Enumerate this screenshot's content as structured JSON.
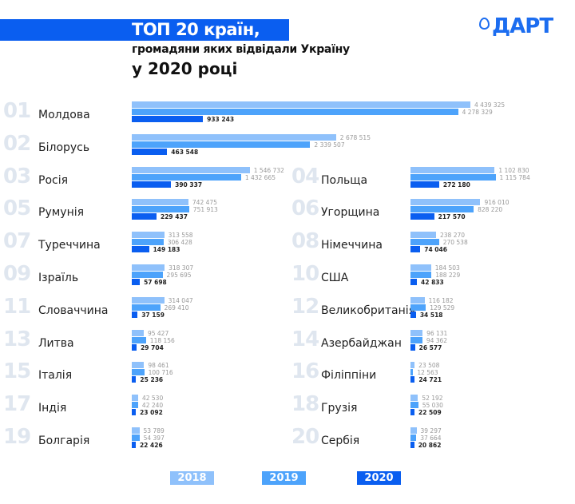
{
  "header": {
    "title_line1": "ТОП 20 країн,",
    "title_line2": "громадяни яких відвідали Україну",
    "title_line3": "у 2020 році"
  },
  "logo": {
    "text": "ДАРТ",
    "icon": "map-pin-icon"
  },
  "colors": {
    "2018": "#8fc1fb",
    "2019": "#4da3fb",
    "2020": "#0a5ef0",
    "rank": "#dfe6ef"
  },
  "chart_data": {
    "type": "bar",
    "orientation": "horizontal",
    "title": "ТОП 20 країн, громадяни яких відвідали Україну у 2020 році",
    "series_names": [
      "2018",
      "2019",
      "2020"
    ],
    "legend_placement": "bottom",
    "grid": false,
    "countries": [
      {
        "rank": "01",
        "name": "Молдова",
        "values": [
          4439325,
          4278329,
          933243
        ],
        "labels": [
          "4 439 325",
          "4 278 329",
          "933 243"
        ]
      },
      {
        "rank": "02",
        "name": "Білорусь",
        "values": [
          2678515,
          2339507,
          463548
        ],
        "labels": [
          "2 678 515",
          "2 339 507",
          "463 548"
        ]
      },
      {
        "rank": "03",
        "name": "Росія",
        "values": [
          1546732,
          1432665,
          390337
        ],
        "labels": [
          "1 546 732",
          "1 432 665",
          "390 337"
        ]
      },
      {
        "rank": "04",
        "name": "Польща",
        "values": [
          1102830,
          1115784,
          272180
        ],
        "labels": [
          "1 102 830",
          "1 115 784",
          "272 180"
        ]
      },
      {
        "rank": "05",
        "name": "Румунія",
        "values": [
          742475,
          751913,
          229437
        ],
        "labels": [
          "742 475",
          "751 913",
          "229 437"
        ]
      },
      {
        "rank": "06",
        "name": "Угорщина",
        "values": [
          916010,
          828220,
          217570
        ],
        "labels": [
          "916 010",
          "828 220",
          "217 570"
        ]
      },
      {
        "rank": "07",
        "name": "Туреччина",
        "values": [
          313558,
          306428,
          149183
        ],
        "labels": [
          "313 558",
          "306 428",
          "149 183"
        ]
      },
      {
        "rank": "08",
        "name": "Німеччина",
        "values": [
          238270,
          270538,
          74046
        ],
        "labels": [
          "238 270",
          "270 538",
          "74 046"
        ]
      },
      {
        "rank": "09",
        "name": "Ізраїль",
        "values": [
          318307,
          295695,
          57698
        ],
        "labels": [
          "318 307",
          "295 695",
          "57 698"
        ]
      },
      {
        "rank": "10",
        "name": "США",
        "values": [
          184503,
          188229,
          42833
        ],
        "labels": [
          "184 503",
          "188 229",
          "42 833"
        ]
      },
      {
        "rank": "11",
        "name": "Словаччина",
        "values": [
          314047,
          269410,
          37159
        ],
        "labels": [
          "314 047",
          "269 410",
          "37 159"
        ]
      },
      {
        "rank": "12",
        "name": "Великобританія",
        "values": [
          116182,
          129529,
          34518
        ],
        "labels": [
          "116 182",
          "129 529",
          "34 518"
        ]
      },
      {
        "rank": "13",
        "name": "Литва",
        "values": [
          95427,
          118156,
          29704
        ],
        "labels": [
          "95 427",
          "118 156",
          "29 704"
        ]
      },
      {
        "rank": "14",
        "name": "Азербайджан",
        "values": [
          96131,
          94362,
          26577
        ],
        "labels": [
          "96 131",
          "94 362",
          "26 577"
        ]
      },
      {
        "rank": "15",
        "name": "Італія",
        "values": [
          98461,
          100716,
          25236
        ],
        "labels": [
          "98 461",
          "100 716",
          "25 236"
        ]
      },
      {
        "rank": "16",
        "name": "Філіппіни",
        "values": [
          23508,
          12563,
          24721
        ],
        "labels": [
          "23 508",
          "12 563",
          "24 721"
        ]
      },
      {
        "rank": "17",
        "name": "Індія",
        "values": [
          42530,
          42240,
          23092
        ],
        "labels": [
          "42 530",
          "42 240",
          "23 092"
        ]
      },
      {
        "rank": "18",
        "name": "Грузія",
        "values": [
          52192,
          55030,
          22509
        ],
        "labels": [
          "52 192",
          "55 030",
          "22 509"
        ]
      },
      {
        "rank": "19",
        "name": "Болгарія",
        "values": [
          53789,
          54397,
          22426
        ],
        "labels": [
          "53 789",
          "54 397",
          "22 426"
        ]
      },
      {
        "rank": "20",
        "name": "Сербія",
        "values": [
          39297,
          37664,
          20862
        ],
        "labels": [
          "39 297",
          "37 664",
          "20 862"
        ]
      }
    ]
  },
  "legend": [
    {
      "label": "2018"
    },
    {
      "label": "2019"
    },
    {
      "label": "2020"
    }
  ]
}
